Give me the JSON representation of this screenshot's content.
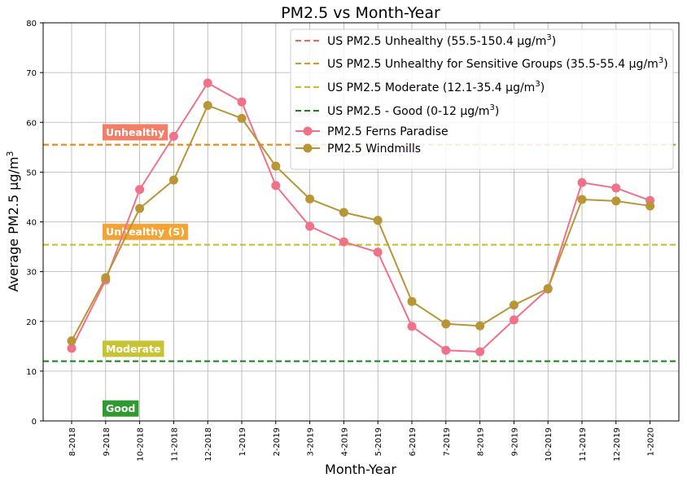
{
  "chart_data": {
    "type": "line",
    "title": "PM2.5 vs Month-Year",
    "xlabel": "Month-Year",
    "ylabel": "Average PM2.5 µg/m",
    "ylabel_sup": "3",
    "ylim": [
      0,
      80
    ],
    "yticks": [
      "0",
      "10",
      "20",
      "30",
      "40",
      "50",
      "60",
      "70",
      "80"
    ],
    "grid": true,
    "legend_position": "top-right",
    "categories": [
      "8-2018",
      "9-2018",
      "10-2018",
      "11-2018",
      "12-2018",
      "1-2019",
      "2-2019",
      "3-2019",
      "4-2019",
      "5-2019",
      "6-2019",
      "7-2019",
      "8-2019",
      "9-2019",
      "10-2019",
      "11-2019",
      "12-2019",
      "1-2020"
    ],
    "series": [
      {
        "name": "PM2.5 Ferns Paradise",
        "color": "#f07189",
        "values": [
          14.6,
          28.3,
          46.5,
          57.2,
          67.9,
          64.1,
          47.3,
          39.1,
          36.0,
          33.9,
          19.0,
          14.2,
          13.9,
          20.3,
          26.5,
          47.9,
          46.8,
          44.3
        ]
      },
      {
        "name": "PM2.5 Windmills",
        "color": "#b89535",
        "values": [
          16.1,
          28.8,
          42.7,
          48.4,
          63.4,
          60.8,
          51.2,
          44.6,
          41.9,
          40.3,
          24.0,
          19.5,
          19.1,
          23.3,
          26.6,
          44.5,
          44.2,
          43.2
        ]
      }
    ],
    "reference_lines": [
      {
        "label": "US PM2.5 Unhealthy (55.5-150.4 µg/m",
        "label_sup": "3",
        "label_end": ")",
        "y": 55.5,
        "color": "#f0684f"
      },
      {
        "label": "US PM2.5 Unhealthy for Sensitive Groups (35.5-55.4 µg/m",
        "label_sup": "3",
        "label_end": ")",
        "y": 55.5,
        "color": "#e8940d"
      },
      {
        "label": "US PM2.5 Moderate (12.1-35.4 µg/m",
        "label_sup": "3",
        "label_end": ")",
        "y": 35.4,
        "color": "#c7bd1e"
      },
      {
        "label": "US PM2.5 - Good (0-12 µg/m",
        "label_sup": "3",
        "label_end": ")",
        "y": 12.0,
        "color": "#118511"
      }
    ],
    "zone_labels": [
      {
        "text": "Unhealthy",
        "y": 58,
        "bg": "#f47d68"
      },
      {
        "text": "Unhealthy (S)",
        "y": 38,
        "bg": "#f3a433"
      },
      {
        "text": "Moderate",
        "y": 14.5,
        "bg": "#c7c332"
      },
      {
        "text": "Good",
        "y": 2.5,
        "bg": "#2f9b2f"
      }
    ]
  }
}
